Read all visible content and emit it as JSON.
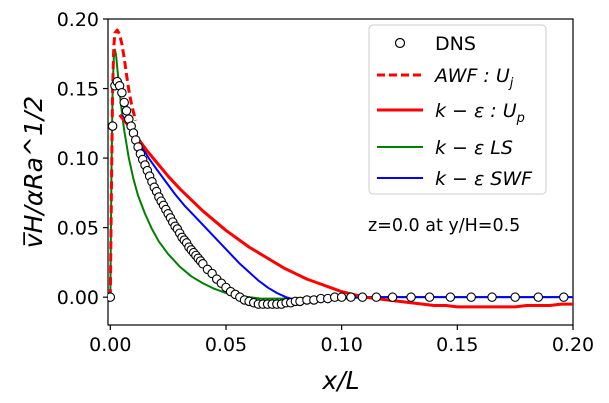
{
  "chart_data": {
    "type": "line",
    "xlabel": "x/L",
    "ylabel": "v̅H/αRa^1/2",
    "xlim": [
      -0.001,
      0.2
    ],
    "ylim": [
      -0.02,
      0.2
    ],
    "xticks": [
      0.0,
      0.05,
      0.1,
      0.15,
      0.2
    ],
    "xtick_labels": [
      "0.00",
      "0.05",
      "0.10",
      "0.15",
      "0.20"
    ],
    "yticks": [
      0.0,
      0.05,
      0.1,
      0.15,
      0.2
    ],
    "ytick_labels": [
      "0.00",
      "0.05",
      "0.10",
      "0.15",
      "0.20"
    ],
    "grid": false,
    "legend_position": "top-right",
    "annotation": "z=0.0 at y/H=0.5",
    "series": [
      {
        "name": "DNS",
        "style": "markers",
        "marker": "open-circle",
        "color": "#000000",
        "x": [
          0.0,
          0.001,
          0.002,
          0.003,
          0.004,
          0.005,
          0.006,
          0.007,
          0.008,
          0.009,
          0.01,
          0.011,
          0.012,
          0.013,
          0.014,
          0.015,
          0.016,
          0.017,
          0.018,
          0.019,
          0.02,
          0.021,
          0.022,
          0.023,
          0.024,
          0.025,
          0.026,
          0.027,
          0.028,
          0.029,
          0.03,
          0.031,
          0.032,
          0.033,
          0.034,
          0.035,
          0.036,
          0.037,
          0.038,
          0.039,
          0.04,
          0.042,
          0.044,
          0.046,
          0.048,
          0.05,
          0.052,
          0.054,
          0.056,
          0.058,
          0.06,
          0.062,
          0.064,
          0.066,
          0.068,
          0.07,
          0.072,
          0.074,
          0.076,
          0.078,
          0.08,
          0.082,
          0.085,
          0.088,
          0.091,
          0.094,
          0.097,
          0.1,
          0.104,
          0.109,
          0.115,
          0.122,
          0.13,
          0.138,
          0.147,
          0.156,
          0.165,
          0.175,
          0.185,
          0.196
        ],
        "y": [
          0.0,
          0.123,
          0.152,
          0.155,
          0.152,
          0.147,
          0.14,
          0.134,
          0.128,
          0.123,
          0.118,
          0.113,
          0.108,
          0.103,
          0.099,
          0.095,
          0.091,
          0.087,
          0.083,
          0.079,
          0.076,
          0.072,
          0.069,
          0.066,
          0.063,
          0.06,
          0.057,
          0.054,
          0.051,
          0.049,
          0.046,
          0.043,
          0.041,
          0.039,
          0.036,
          0.034,
          0.032,
          0.03,
          0.028,
          0.026,
          0.024,
          0.02,
          0.017,
          0.013,
          0.01,
          0.007,
          0.004,
          0.002,
          0.0,
          -0.002,
          -0.003,
          -0.004,
          -0.005,
          -0.005,
          -0.005,
          -0.005,
          -0.005,
          -0.005,
          -0.004,
          -0.004,
          -0.003,
          -0.003,
          -0.002,
          -0.002,
          -0.001,
          -0.001,
          0.0,
          0.0,
          0.0,
          0.0,
          0.0,
          0.0,
          0.0,
          0.0,
          0.0,
          0.0,
          0.0,
          0.0,
          0.0,
          0.0
        ]
      },
      {
        "name": "AWF : U_j",
        "legend_main": "AWF : U",
        "legend_sub": "j",
        "style": "dashed",
        "color": "#ff0000",
        "linewidth": 3,
        "x": [
          0.0,
          0.0005,
          0.001,
          0.0015,
          0.002,
          0.003,
          0.004,
          0.005,
          0.006,
          0.007,
          0.008,
          0.009,
          0.01,
          0.011
        ],
        "y": [
          0.0,
          0.08,
          0.15,
          0.18,
          0.19,
          0.192,
          0.189,
          0.182,
          0.172,
          0.16,
          0.149,
          0.14,
          0.133,
          0.127
        ]
      },
      {
        "name": "k − ε : U_p",
        "legend_main": "k − ε :  U",
        "legend_sub": "p",
        "style": "solid",
        "color": "#ff0000",
        "linewidth": 3,
        "x": [
          0.004,
          0.008,
          0.012,
          0.016,
          0.02,
          0.025,
          0.03,
          0.035,
          0.04,
          0.045,
          0.05,
          0.055,
          0.06,
          0.065,
          0.07,
          0.075,
          0.08,
          0.085,
          0.09,
          0.095,
          0.1,
          0.105,
          0.11,
          0.115,
          0.12,
          0.125,
          0.13,
          0.135,
          0.14,
          0.145,
          0.15,
          0.155,
          0.16,
          0.165,
          0.17,
          0.175,
          0.18,
          0.185,
          0.19,
          0.195,
          0.2
        ],
        "y": [
          0.131,
          0.123,
          0.114,
          0.105,
          0.097,
          0.087,
          0.078,
          0.07,
          0.062,
          0.055,
          0.048,
          0.042,
          0.036,
          0.031,
          0.026,
          0.021,
          0.017,
          0.013,
          0.01,
          0.007,
          0.004,
          0.002,
          0.0,
          -0.001,
          -0.002,
          -0.003,
          -0.004,
          -0.005,
          -0.006,
          -0.006,
          -0.007,
          -0.007,
          -0.007,
          -0.007,
          -0.007,
          -0.007,
          -0.006,
          -0.006,
          -0.006,
          -0.005,
          -0.005
        ]
      },
      {
        "name": "k − ε LS",
        "style": "solid",
        "color": "#008000",
        "linewidth": 2,
        "x": [
          0.0,
          0.0005,
          0.001,
          0.0015,
          0.002,
          0.0025,
          0.003,
          0.004,
          0.005,
          0.006,
          0.008,
          0.01,
          0.012,
          0.015,
          0.018,
          0.021,
          0.025,
          0.03,
          0.035,
          0.04,
          0.045,
          0.05,
          0.055,
          0.06,
          0.065,
          0.07,
          0.08,
          0.09,
          0.1,
          0.12,
          0.14,
          0.16,
          0.18,
          0.2
        ],
        "y": [
          0.0,
          0.09,
          0.15,
          0.172,
          0.178,
          0.174,
          0.165,
          0.148,
          0.133,
          0.12,
          0.1,
          0.085,
          0.073,
          0.06,
          0.049,
          0.04,
          0.031,
          0.022,
          0.015,
          0.01,
          0.006,
          0.003,
          0.001,
          0.0,
          -0.001,
          -0.001,
          -0.001,
          0.0,
          0.0,
          0.0,
          0.0,
          0.0,
          0.0,
          0.0
        ]
      },
      {
        "name": "k − ε SWF",
        "style": "solid",
        "color": "#0000ff",
        "linewidth": 2,
        "x": [
          0.005,
          0.008,
          0.011,
          0.014,
          0.017,
          0.02,
          0.024,
          0.028,
          0.032,
          0.036,
          0.04,
          0.044,
          0.048,
          0.052,
          0.056,
          0.06,
          0.064,
          0.068,
          0.072,
          0.076,
          0.08,
          0.085,
          0.09,
          0.095,
          0.1,
          0.11,
          0.12,
          0.14,
          0.16,
          0.18,
          0.2
        ],
        "y": [
          0.131,
          0.124,
          0.116,
          0.107,
          0.099,
          0.092,
          0.083,
          0.074,
          0.066,
          0.059,
          0.052,
          0.045,
          0.038,
          0.031,
          0.024,
          0.018,
          0.012,
          0.007,
          0.003,
          0.0,
          -0.002,
          -0.003,
          -0.003,
          -0.002,
          -0.001,
          0.0,
          0.0,
          0.0,
          0.0,
          0.0,
          0.0
        ]
      }
    ]
  }
}
